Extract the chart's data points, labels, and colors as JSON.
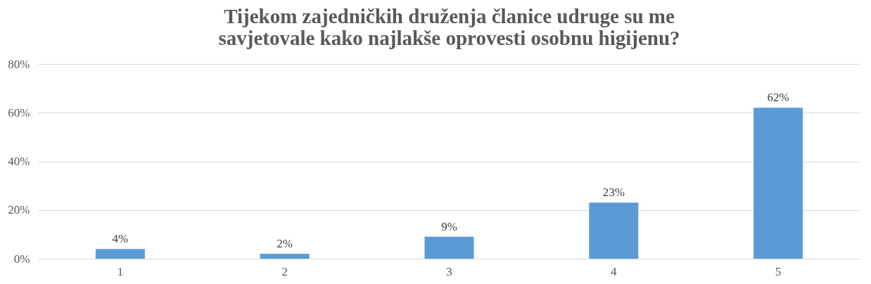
{
  "chart_data": {
    "type": "bar",
    "title": [
      "Tijekom zajedničkih druženja članice udruge su me",
      "savjetovale kako najlakše oprovesti osobnu higijenu?"
    ],
    "categories": [
      "1",
      "2",
      "3",
      "4",
      "5"
    ],
    "values": [
      4,
      2,
      9,
      23,
      62
    ],
    "value_labels": [
      "4%",
      "2%",
      "9%",
      "23%",
      "62%"
    ],
    "color": "#5b9bd5",
    "ylim": [
      0,
      80
    ],
    "yticks": [
      {
        "value": 0,
        "label": "0%"
      },
      {
        "value": 20,
        "label": "20%"
      },
      {
        "value": 40,
        "label": "40%"
      },
      {
        "value": 60,
        "label": "60%"
      },
      {
        "value": 80,
        "label": "80%"
      }
    ],
    "grid": "y"
  }
}
